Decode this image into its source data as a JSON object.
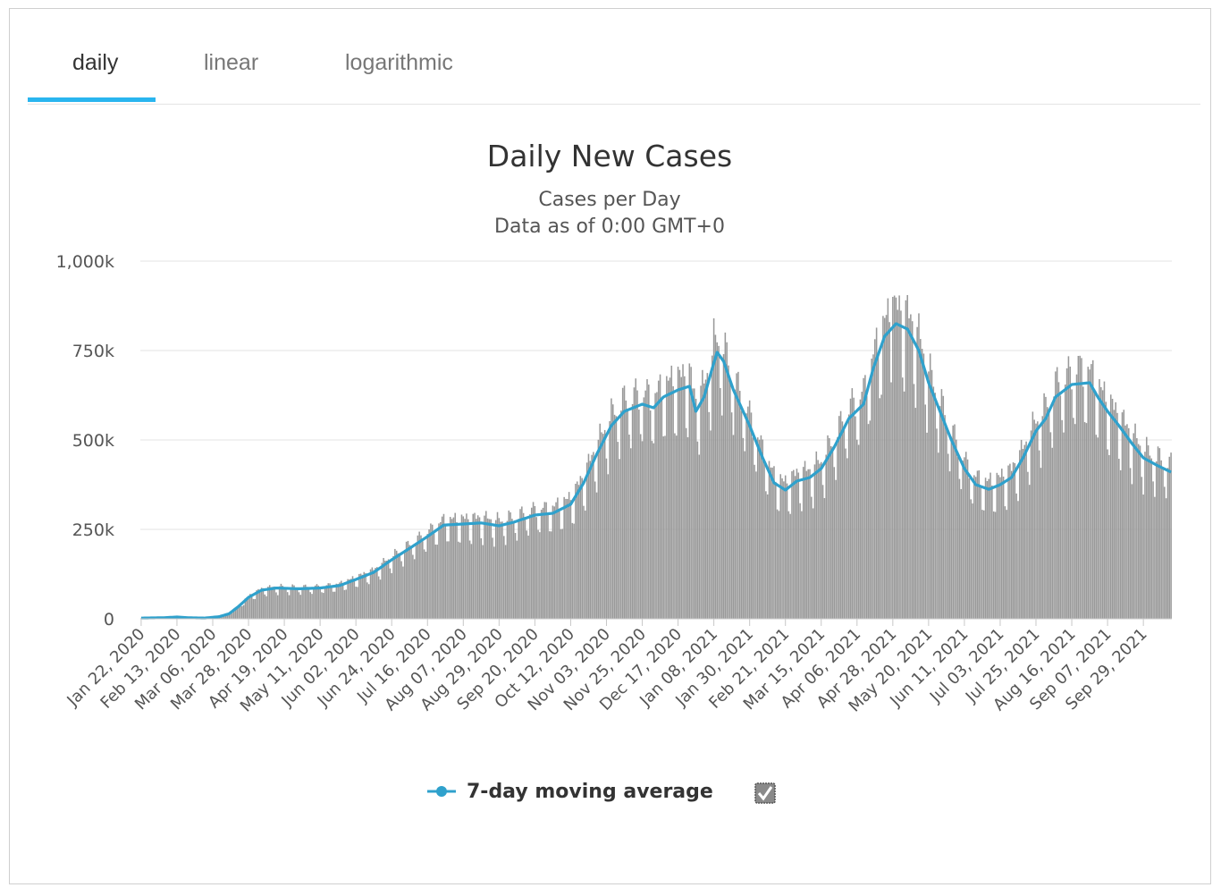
{
  "tabs": [
    {
      "label": "daily",
      "active": true
    },
    {
      "label": "linear",
      "active": false
    },
    {
      "label": "logarithmic",
      "active": false
    }
  ],
  "colors": {
    "accent": "#29b5ef",
    "bars": "#999999",
    "line": "#2fa1cc",
    "grid": "#e3e3e3"
  },
  "legend": {
    "label": "7-day moving average",
    "checkbox_icon": "checkbox-checked-icon",
    "checked": true
  },
  "chart_data": {
    "type": "bar",
    "title": "Daily New Cases",
    "subtitle_lines": [
      "Cases per Day",
      "Data as of 0:00 GMT+0"
    ],
    "xlabel": "",
    "ylabel": "",
    "ylim": [
      0,
      1000000
    ],
    "yticks": [
      {
        "value": 0,
        "label": "0"
      },
      {
        "value": 250000,
        "label": "250k"
      },
      {
        "value": 500000,
        "label": "500k"
      },
      {
        "value": 750000,
        "label": "750k"
      },
      {
        "value": 1000000,
        "label": "1,000k"
      }
    ],
    "x_start": "2020-01-22",
    "x_end": "2021-10-16",
    "x_tick_labels": [
      "Jan 22, 2020",
      "Feb 13, 2020",
      "Mar 06, 2020",
      "Mar 28, 2020",
      "Apr 19, 2020",
      "May 11, 2020",
      "Jun 02, 2020",
      "Jun 24, 2020",
      "Jul 16, 2020",
      "Aug 07, 2020",
      "Aug 29, 2020",
      "Sep 20, 2020",
      "Oct 12, 2020",
      "Nov 03, 2020",
      "Nov 25, 2020",
      "Dec 17, 2020",
      "Jan 08, 2021",
      "Jan 30, 2021",
      "Feb 21, 2021",
      "Mar 15, 2021",
      "Apr 06, 2021",
      "Apr 28, 2021",
      "May 20, 2021",
      "Jun 11, 2021",
      "Jul 03, 2021",
      "Jul 25, 2021",
      "Aug 16, 2021",
      "Sep 07, 2021",
      "Sep 29, 2021"
    ],
    "x_tick_interval_days": 22,
    "grid": true,
    "legend_position": "bottom-center",
    "series": [
      {
        "name": "7-day moving average",
        "type": "line",
        "points": [
          [
            "2020-01-22",
            2000
          ],
          [
            "2020-02-05",
            3000
          ],
          [
            "2020-02-13",
            5000
          ],
          [
            "2020-02-20",
            3000
          ],
          [
            "2020-03-01",
            2000
          ],
          [
            "2020-03-10",
            6000
          ],
          [
            "2020-03-16",
            14000
          ],
          [
            "2020-03-22",
            35000
          ],
          [
            "2020-03-28",
            60000
          ],
          [
            "2020-04-05",
            80000
          ],
          [
            "2020-04-14",
            86000
          ],
          [
            "2020-04-28",
            84000
          ],
          [
            "2020-05-11",
            86000
          ],
          [
            "2020-05-23",
            93000
          ],
          [
            "2020-06-02",
            110000
          ],
          [
            "2020-06-13",
            130000
          ],
          [
            "2020-06-24",
            165000
          ],
          [
            "2020-07-06",
            200000
          ],
          [
            "2020-07-16",
            230000
          ],
          [
            "2020-07-26",
            262000
          ],
          [
            "2020-08-07",
            265000
          ],
          [
            "2020-08-18",
            268000
          ],
          [
            "2020-08-29",
            260000
          ],
          [
            "2020-09-07",
            270000
          ],
          [
            "2020-09-20",
            290000
          ],
          [
            "2020-10-01",
            295000
          ],
          [
            "2020-10-12",
            320000
          ],
          [
            "2020-10-20",
            380000
          ],
          [
            "2020-10-28",
            460000
          ],
          [
            "2020-11-06",
            540000
          ],
          [
            "2020-11-14",
            580000
          ],
          [
            "2020-11-25",
            600000
          ],
          [
            "2020-12-02",
            590000
          ],
          [
            "2020-12-08",
            620000
          ],
          [
            "2020-12-17",
            640000
          ],
          [
            "2020-12-24",
            650000
          ],
          [
            "2020-12-28",
            580000
          ],
          [
            "2021-01-02",
            620000
          ],
          [
            "2021-01-07",
            700000
          ],
          [
            "2021-01-10",
            745000
          ],
          [
            "2021-01-14",
            720000
          ],
          [
            "2021-01-20",
            640000
          ],
          [
            "2021-01-30",
            540000
          ],
          [
            "2021-02-07",
            450000
          ],
          [
            "2021-02-14",
            380000
          ],
          [
            "2021-02-21",
            360000
          ],
          [
            "2021-02-28",
            385000
          ],
          [
            "2021-03-08",
            395000
          ],
          [
            "2021-03-15",
            420000
          ],
          [
            "2021-03-23",
            480000
          ],
          [
            "2021-04-01",
            560000
          ],
          [
            "2021-04-10",
            600000
          ],
          [
            "2021-04-16",
            700000
          ],
          [
            "2021-04-23",
            790000
          ],
          [
            "2021-04-30",
            825000
          ],
          [
            "2021-05-07",
            810000
          ],
          [
            "2021-05-14",
            750000
          ],
          [
            "2021-05-20",
            660000
          ],
          [
            "2021-05-27",
            580000
          ],
          [
            "2021-06-03",
            500000
          ],
          [
            "2021-06-11",
            420000
          ],
          [
            "2021-06-18",
            375000
          ],
          [
            "2021-06-26",
            362000
          ],
          [
            "2021-07-03",
            375000
          ],
          [
            "2021-07-10",
            395000
          ],
          [
            "2021-07-17",
            450000
          ],
          [
            "2021-07-25",
            525000
          ],
          [
            "2021-07-31",
            560000
          ],
          [
            "2021-08-06",
            620000
          ],
          [
            "2021-08-16",
            655000
          ],
          [
            "2021-08-27",
            660000
          ],
          [
            "2021-09-01",
            620000
          ],
          [
            "2021-09-07",
            580000
          ],
          [
            "2021-09-14",
            540000
          ],
          [
            "2021-09-22",
            490000
          ],
          [
            "2021-09-29",
            450000
          ],
          [
            "2021-10-07",
            430000
          ],
          [
            "2021-10-16",
            410000
          ]
        ]
      },
      {
        "name": "",
        "type": "bar",
        "description": "daily new cases, approximately the moving average with day-to-day variation",
        "peak_values": [
          [
            "2021-01-08",
            840000
          ],
          [
            "2021-04-28",
            900000
          ],
          [
            "2021-08-20",
            735000
          ]
        ]
      }
    ]
  }
}
